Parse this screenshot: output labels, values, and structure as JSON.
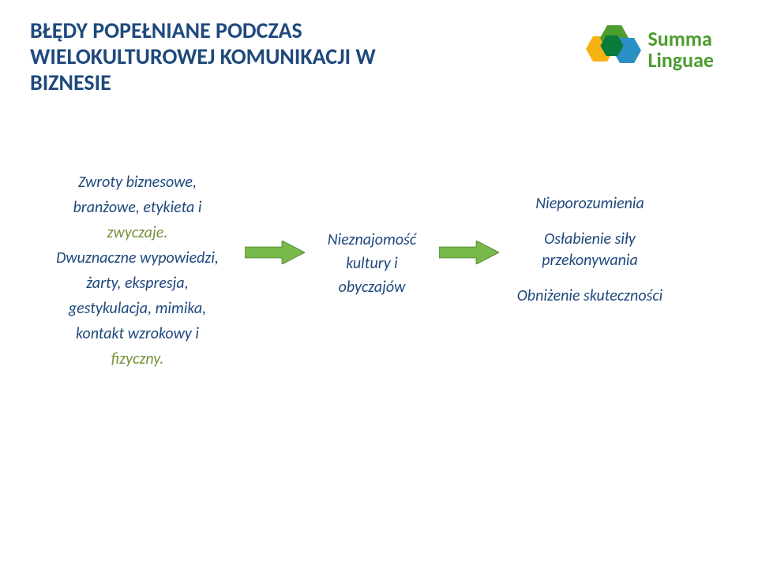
{
  "title": {
    "line1": "BŁĘDY POPEŁNIANE PODCZAS",
    "line2": "WIELOKULTUROWEJ KOMUNIKACJI W",
    "line3": "BIZNESIE",
    "color": "#1f497d",
    "fontsize": 28
  },
  "logo": {
    "line1": "Summa",
    "line2": "Linguae",
    "color1": "#4c9c2e",
    "color2": "#4c9c2e",
    "fontsize": 26,
    "hex_colors": {
      "outer_left": "#f6b213",
      "outer_top": "#4c9c2e",
      "outer_right": "#2a8fc4",
      "inner": "#0a7a3a"
    }
  },
  "left": {
    "l1": "Zwroty biznesowe,",
    "l2": "branżowe, etykieta i",
    "l3": "zwyczaje.",
    "l4": "Dwuznaczne wypowiedzi,",
    "l5": "żarty, ekspresja,",
    "l6": "gestykulacja, mimika,",
    "l7": "kontakt wzrokowy i",
    "l8": "fizyczny.",
    "color_normal": "#1f497d",
    "color_highlight": "#77933c",
    "fontsize": 20
  },
  "middle": {
    "l1": "Nieznajomość",
    "l2": "kultury i",
    "l3": "obyczajów",
    "color": "#1f497d",
    "fontsize": 20
  },
  "right": {
    "l1": "Nieporozumienia",
    "l2a": "Osłabienie siły",
    "l2b": "przekonywania",
    "l3": "Obniżenie skuteczności",
    "color": "#1f497d",
    "fontsize": 20
  },
  "arrow": {
    "fill": "#77b94a",
    "stroke": "#5a8c34",
    "width": 76,
    "height": 30
  }
}
